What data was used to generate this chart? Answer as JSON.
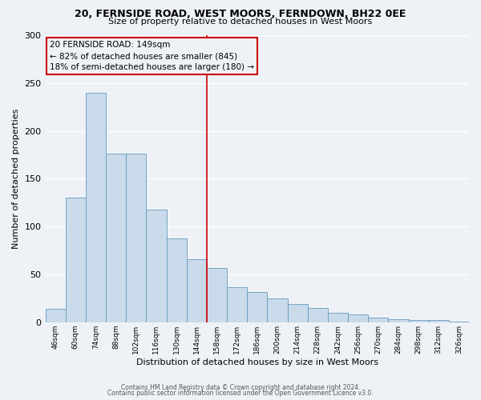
{
  "title1": "20, FERNSIDE ROAD, WEST MOORS, FERNDOWN, BH22 0EE",
  "title2": "Size of property relative to detached houses in West Moors",
  "xlabel": "Distribution of detached houses by size in West Moors",
  "ylabel": "Number of detached properties",
  "bar_color": "#c9daea",
  "bar_edge_color": "#6699bb",
  "categories": [
    "46sqm",
    "60sqm",
    "74sqm",
    "88sqm",
    "102sqm",
    "116sqm",
    "130sqm",
    "144sqm",
    "158sqm",
    "172sqm",
    "186sqm",
    "200sqm",
    "214sqm",
    "228sqm",
    "242sqm",
    "256sqm",
    "270sqm",
    "284sqm",
    "298sqm",
    "312sqm",
    "326sqm"
  ],
  "values": [
    14,
    130,
    240,
    176,
    176,
    118,
    88,
    66,
    57,
    37,
    32,
    25,
    19,
    15,
    10,
    8,
    5,
    3,
    2,
    2,
    1
  ],
  "ylim": [
    0,
    300
  ],
  "yticks": [
    0,
    50,
    100,
    150,
    200,
    250,
    300
  ],
  "vline_x_idx": 7,
  "vline_color": "#cc0000",
  "annotation_title": "20 FERNSIDE ROAD: 149sqm",
  "annotation_line1": "← 82% of detached houses are smaller (845)",
  "annotation_line2": "18% of semi-detached houses are larger (180) →",
  "annotation_box_color": "#cc0000",
  "footer1": "Contains HM Land Registry data © Crown copyright and database right 2024.",
  "footer2": "Contains public sector information licensed under the Open Government Licence v3.0.",
  "bg_color": "#eef2f7",
  "grid_color": "#ffffff"
}
